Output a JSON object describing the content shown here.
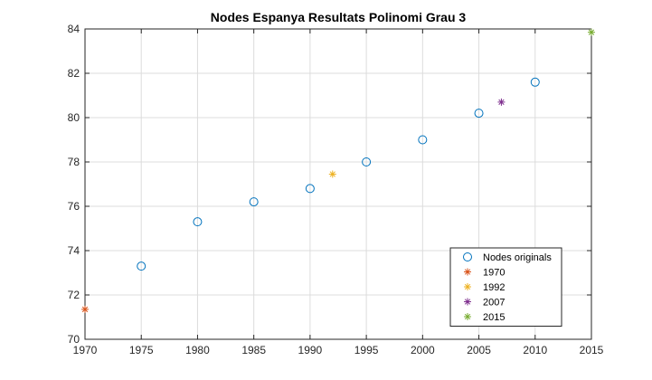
{
  "chart_data": {
    "type": "scatter",
    "title": "Nodes Espanya Resultats Polinomi Grau 3",
    "xlabel": "",
    "ylabel": "",
    "xlim": [
      1970,
      2015
    ],
    "ylim": [
      70,
      84
    ],
    "xticks": [
      1970,
      1975,
      1980,
      1985,
      1990,
      1995,
      2000,
      2005,
      2010,
      2015
    ],
    "yticks": [
      70,
      72,
      74,
      76,
      78,
      80,
      82,
      84
    ],
    "grid": true,
    "legend_position": "bottom-right",
    "series": [
      {
        "name": "Nodes originals",
        "marker": "circle",
        "color": "#0072BD",
        "points": [
          [
            1975,
            73.3
          ],
          [
            1980,
            75.3
          ],
          [
            1985,
            76.2
          ],
          [
            1990,
            76.8
          ],
          [
            1995,
            78.0
          ],
          [
            2000,
            79.0
          ],
          [
            2005,
            80.2
          ],
          [
            2010,
            81.6
          ]
        ]
      },
      {
        "name": "1970",
        "marker": "asterisk",
        "color": "#D95319",
        "points": [
          [
            1970,
            71.35
          ]
        ]
      },
      {
        "name": "1992",
        "marker": "asterisk",
        "color": "#EDB120",
        "points": [
          [
            1992,
            77.45
          ]
        ]
      },
      {
        "name": "2007",
        "marker": "asterisk",
        "color": "#7E2F8E",
        "points": [
          [
            2007,
            80.7
          ]
        ]
      },
      {
        "name": "2015",
        "marker": "asterisk",
        "color": "#77AC30",
        "points": [
          [
            2015,
            83.85
          ]
        ]
      }
    ]
  }
}
